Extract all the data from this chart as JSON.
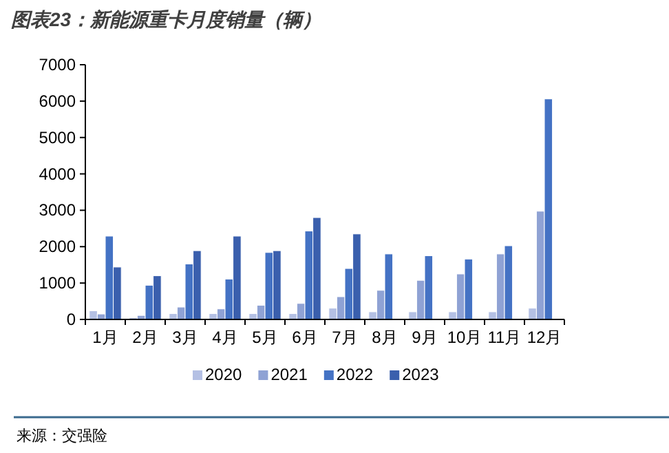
{
  "chart_data": {
    "type": "bar",
    "title": "图表23：新能源重卡月度销量（辆）",
    "categories": [
      "1月",
      "2月",
      "3月",
      "4月",
      "5月",
      "6月",
      "7月",
      "8月",
      "9月",
      "10月",
      "11月",
      "12月"
    ],
    "series": [
      {
        "name": "2020",
        "color": "#b4c0e4",
        "values": [
          240,
          50,
          160,
          160,
          160,
          160,
          310,
          210,
          210,
          210,
          210,
          310
        ]
      },
      {
        "name": "2021",
        "color": "#8fa2d4",
        "values": [
          150,
          110,
          340,
          290,
          390,
          440,
          625,
          800,
          1075,
          1250,
          1800,
          2975
        ]
      },
      {
        "name": "2022",
        "color": "#4472c4",
        "values": [
          2290,
          940,
          1525,
          1110,
          1840,
          2430,
          1400,
          1800,
          1750,
          1660,
          2025,
          6060
        ]
      },
      {
        "name": "2023",
        "color": "#3a5fad",
        "values": [
          1440,
          1200,
          1890,
          2290,
          1890,
          2800,
          2350,
          null,
          null,
          null,
          null,
          null
        ]
      }
    ],
    "ylim": [
      0,
      7000
    ],
    "yticks": [
      0,
      1000,
      2000,
      3000,
      4000,
      5000,
      6000,
      7000
    ],
    "legend": "bottom",
    "annotations": [
      "来源：交强险"
    ]
  }
}
